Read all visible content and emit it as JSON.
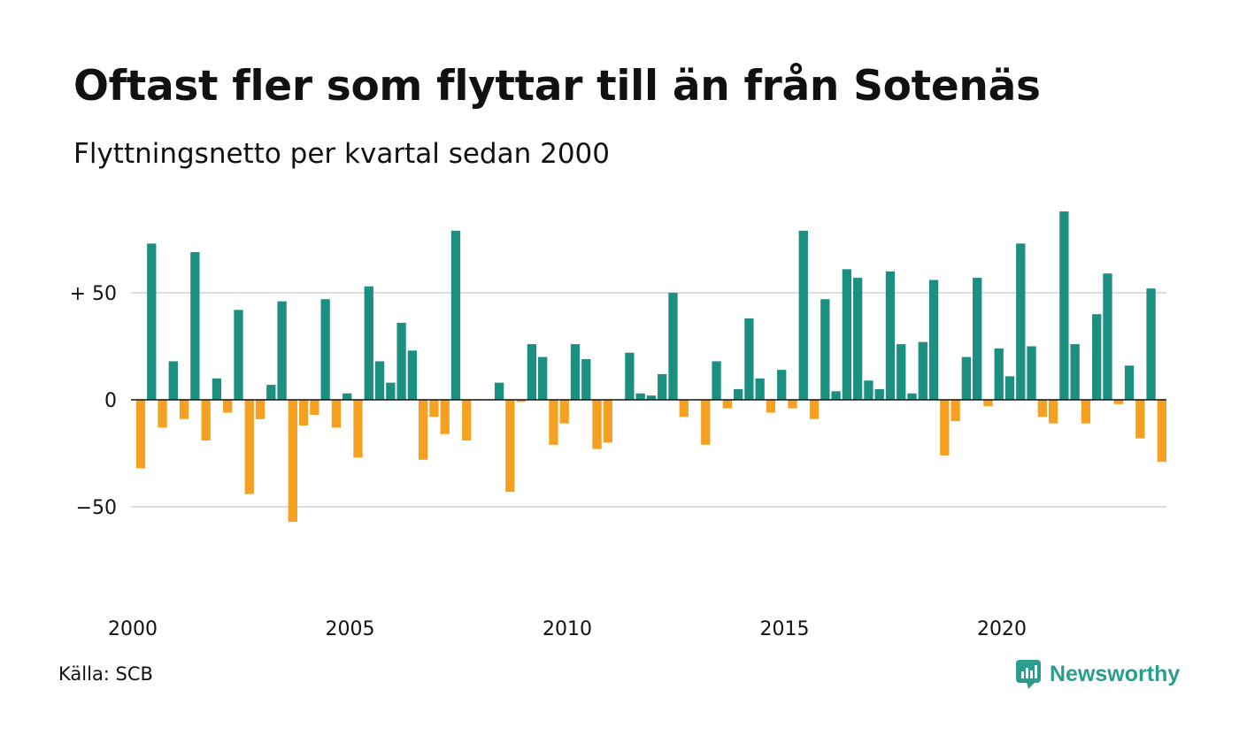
{
  "title": "Oftast fler som flyttar till än från Sotenäs",
  "subtitle": "Flyttningsnetto per kvartal sedan 2000",
  "source": "Källa: SCB",
  "brand": {
    "name": "Newsworthy",
    "icon": "newsworthy-logo-icon"
  },
  "colors": {
    "positive": "#1b9080",
    "negative": "#f5a020",
    "grid": "#dddddd",
    "zero_line": "#111111"
  },
  "chart_data": {
    "type": "bar",
    "title": "Oftast fler som flyttar till än från Sotenäs",
    "subtitle": "Flyttningsnetto per kvartal sedan 2000",
    "ylim": [
      -100,
      100
    ],
    "y_ticks": [
      {
        "value": 50,
        "label": "+ 50"
      },
      {
        "value": 0,
        "label": "0"
      },
      {
        "value": -50,
        "label": "−50"
      }
    ],
    "x_ticks": [
      {
        "year": 2000,
        "label": "2000"
      },
      {
        "year": 2005,
        "label": "2005"
      },
      {
        "year": 2010,
        "label": "2010"
      },
      {
        "year": 2015,
        "label": "2015"
      },
      {
        "year": 2020,
        "label": "2020"
      }
    ],
    "grid": true,
    "start": "2000 Q1",
    "period": "quarter",
    "values": [
      -32,
      73,
      -13,
      18,
      -9,
      69,
      -19,
      10,
      -6,
      42,
      -44,
      -9,
      7,
      46,
      -57,
      -12,
      -7,
      47,
      -13,
      3,
      -27,
      53,
      18,
      8,
      36,
      23,
      -28,
      -8,
      -16,
      79,
      -19,
      0,
      0,
      8,
      -43,
      -1,
      26,
      20,
      -21,
      -11,
      26,
      19,
      -23,
      -20,
      0,
      22,
      3,
      2,
      12,
      50,
      -8,
      0,
      -21,
      18,
      -4,
      5,
      38,
      10,
      -6,
      14,
      -4,
      79,
      -9,
      47,
      4,
      61,
      57,
      9,
      5,
      60,
      26,
      3,
      27,
      56,
      -26,
      -10,
      20,
      57,
      -3,
      24,
      11,
      73,
      25,
      -8,
      -11,
      88,
      26,
      -11,
      40,
      59,
      -2,
      16,
      -18,
      52,
      -29
    ]
  }
}
